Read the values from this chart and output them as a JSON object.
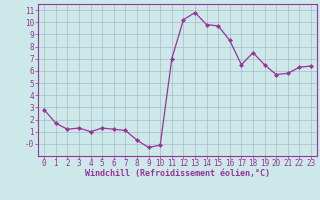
{
  "x": [
    0,
    1,
    2,
    3,
    4,
    5,
    6,
    7,
    8,
    9,
    10,
    11,
    12,
    13,
    14,
    15,
    16,
    17,
    18,
    19,
    20,
    21,
    22,
    23
  ],
  "y": [
    2.8,
    1.7,
    1.2,
    1.3,
    1.0,
    1.3,
    1.2,
    1.1,
    0.3,
    -0.3,
    -0.1,
    7.0,
    10.2,
    10.8,
    9.8,
    9.7,
    8.5,
    6.5,
    7.5,
    6.5,
    5.7,
    5.8,
    6.3,
    6.4
  ],
  "line_color": "#993399",
  "marker": "D",
  "marker_size": 2.0,
  "bg_color": "#cce8e8",
  "grid_color": "#aabbcc",
  "xlabel": "Windchill (Refroidissement éolien,°C)",
  "xlabel_color": "#993399",
  "ylim": [
    -1,
    11.5
  ],
  "xlim": [
    -0.5,
    23.5
  ],
  "ytick_labels": [
    "11",
    "10",
    "9",
    "8",
    "7",
    "6",
    "5",
    "4",
    "3",
    "2",
    "1",
    "-0"
  ],
  "ytick_values": [
    11,
    10,
    9,
    8,
    7,
    6,
    5,
    4,
    3,
    2,
    1,
    0
  ],
  "xticks": [
    0,
    1,
    2,
    3,
    4,
    5,
    6,
    7,
    8,
    9,
    10,
    11,
    12,
    13,
    14,
    15,
    16,
    17,
    18,
    19,
    20,
    21,
    22,
    23
  ]
}
